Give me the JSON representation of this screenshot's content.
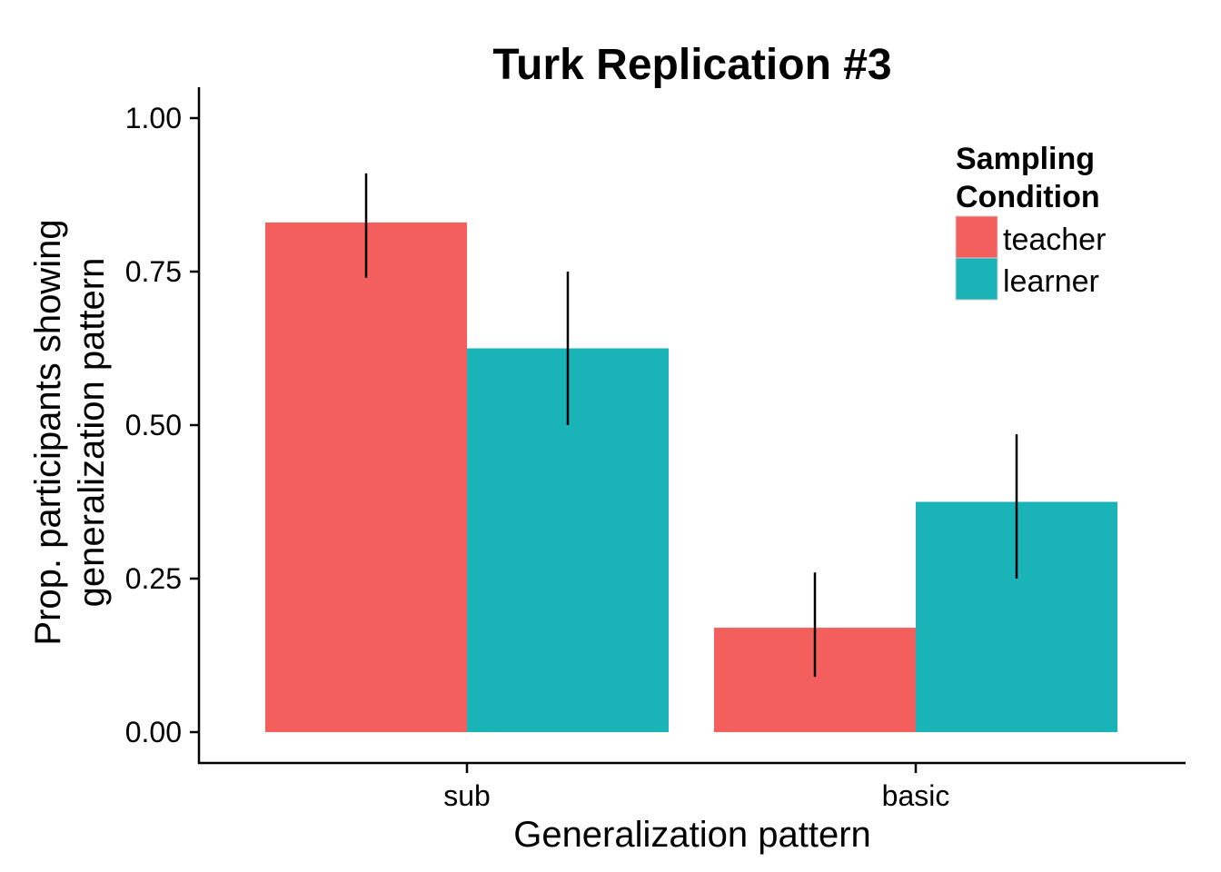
{
  "chart_data": {
    "type": "bar",
    "title": "Turk Replication #3",
    "xlabel": "Generalization pattern",
    "ylabel_lines": [
      "Prop. participants showing",
      "generalization pattern"
    ],
    "categories": [
      "sub",
      "basic"
    ],
    "series": [
      {
        "name": "teacher",
        "color": "#F25F5C",
        "values": [
          0.83,
          0.17
        ],
        "error_low": [
          0.74,
          0.09
        ],
        "error_high": [
          0.91,
          0.26
        ]
      },
      {
        "name": "learner",
        "color": "#1AB3B8",
        "values": [
          0.625,
          0.375
        ],
        "error_low": [
          0.5,
          0.25
        ],
        "error_high": [
          0.75,
          0.485
        ]
      }
    ],
    "ylim": [
      -0.05,
      1.05
    ],
    "yticks": [
      0.0,
      0.25,
      0.5,
      0.75,
      1.0
    ],
    "ytick_labels": [
      "0.00",
      "0.25",
      "0.50",
      "0.75",
      "1.00"
    ],
    "legend": {
      "title_lines": [
        "Sampling",
        "Condition"
      ],
      "placement": "top-right"
    },
    "grid": false
  }
}
